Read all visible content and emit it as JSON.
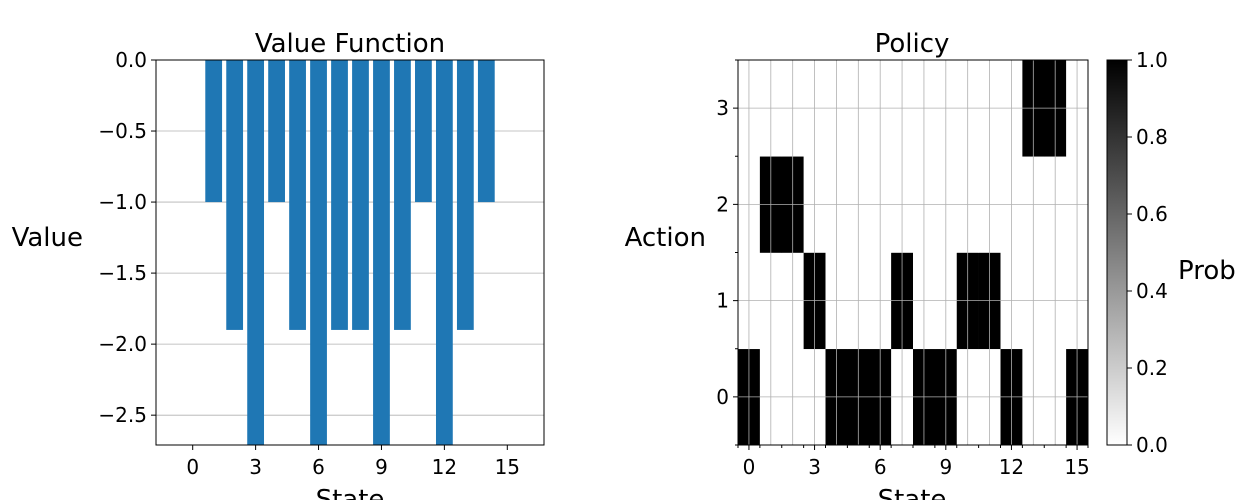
{
  "chart_data": [
    {
      "type": "bar",
      "title": "Value Function",
      "xlabel": "State",
      "ylabel": "Value",
      "x": [
        0,
        1,
        2,
        3,
        4,
        5,
        6,
        7,
        8,
        9,
        10,
        11,
        12,
        13,
        14,
        15
      ],
      "values": [
        0,
        -1,
        -1.9,
        -2.71,
        -1,
        -1.9,
        -2.71,
        -1.9,
        -1.9,
        -2.71,
        -1.9,
        -1,
        -2.71,
        -1.9,
        -1,
        0
      ],
      "xlim": [
        -1.75,
        16.75
      ],
      "ylim": [
        -2.71,
        0
      ],
      "xticks": [
        "0",
        "3",
        "6",
        "9",
        "12",
        "15"
      ],
      "yticks": [
        "0.0",
        "−0.5",
        "−1.0",
        "−1.5",
        "−2.0",
        "−2.5"
      ],
      "ytick_values": [
        0,
        -0.5,
        -1.0,
        -1.5,
        -2.0,
        -2.5
      ],
      "grid": "y",
      "color": "#1f77b4"
    },
    {
      "type": "heatmap",
      "title": "Policy",
      "xlabel": "State",
      "ylabel": "Action",
      "colorbar_label": "Prob",
      "states": 16,
      "actions": [
        0,
        1,
        2,
        3
      ],
      "policy_action": [
        0,
        2,
        2,
        1,
        0,
        0,
        0,
        1,
        0,
        0,
        1,
        1,
        0,
        3,
        3,
        0
      ],
      "xticks": [
        "0",
        "3",
        "6",
        "9",
        "12",
        "15"
      ],
      "yticks": [
        "0",
        "1",
        "2",
        "3"
      ],
      "colorbar_ticks": [
        "0.0",
        "0.2",
        "0.4",
        "0.6",
        "0.8",
        "1.0"
      ],
      "colorbar_range": [
        0,
        1
      ],
      "colormap": "gray_r",
      "grid": "both"
    }
  ]
}
